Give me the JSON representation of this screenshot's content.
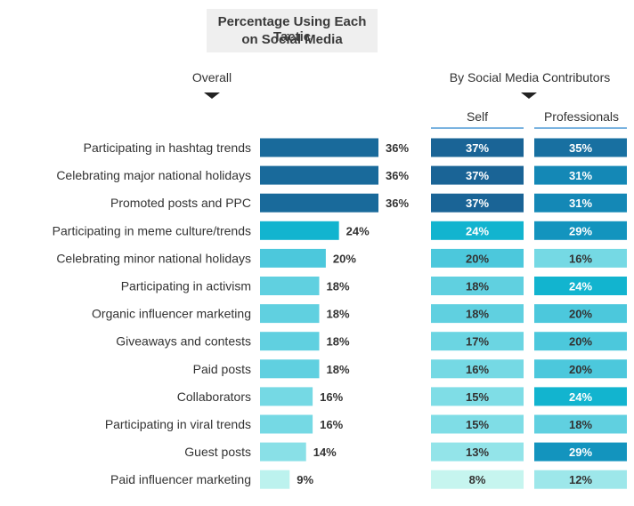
{
  "title_line1": "Percentage Using Each Tactic",
  "title_line2": "on Social Media",
  "overall_label": "Overall",
  "contributors_label": "By Social Media Contributors",
  "self_label": "Self",
  "professionals_label": "Professionals",
  "chart_data": {
    "type": "bar",
    "orientation": "horizontal",
    "categories": [
      "Participating in hashtag trends",
      "Celebrating major national holidays",
      "Promoted posts and PPC",
      "Participating in meme culture/trends",
      "Celebrating minor national holidays",
      "Participating in activism",
      "Organic influencer marketing",
      "Giveaways and contests",
      "Paid posts",
      "Collaborators",
      "Participating in viral trends",
      "Guest posts",
      "Paid influencer marketing"
    ],
    "series": [
      {
        "name": "Overall",
        "values": [
          36,
          36,
          36,
          24,
          20,
          18,
          18,
          18,
          18,
          16,
          16,
          14,
          9
        ]
      },
      {
        "name": "Self",
        "values": [
          37,
          37,
          37,
          24,
          20,
          18,
          18,
          17,
          16,
          15,
          15,
          13,
          8
        ]
      },
      {
        "name": "Professionals",
        "values": [
          35,
          31,
          31,
          29,
          16,
          24,
          20,
          20,
          20,
          24,
          18,
          29,
          12
        ]
      }
    ],
    "unit": "%",
    "color_scale": [
      "#c6f5ef",
      "#1a6496"
    ]
  }
}
